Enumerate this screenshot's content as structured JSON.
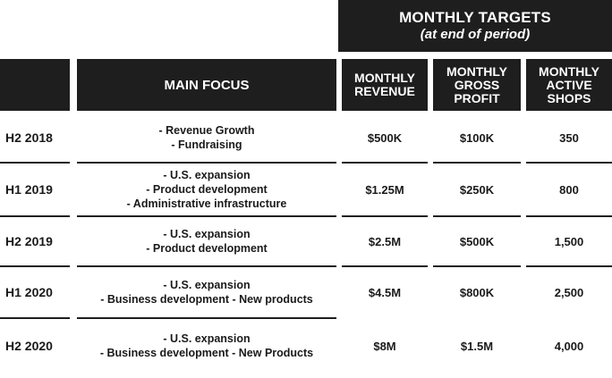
{
  "header": {
    "targets_title": "MONTHLY TARGETS",
    "targets_subtitle": "(at end of period)",
    "main_focus": "MAIN FOCUS",
    "revenue_line1": "MONTHLY",
    "revenue_line2": "REVENUE",
    "gross_line1": "MONTHLY",
    "gross_line2": "GROSS",
    "gross_line3": "PROFIT",
    "shops_line1": "MONTHLY",
    "shops_line2": "ACTIVE",
    "shops_line3": "SHOPS"
  },
  "rows": [
    {
      "period": "H2 2018",
      "focus": [
        "- Revenue Growth",
        "- Fundraising"
      ],
      "revenue": "$500K",
      "gross_profit": "$100K",
      "active_shops": "350"
    },
    {
      "period": "H1 2019",
      "focus": [
        "- U.S. expansion",
        "- Product development",
        "- Administrative infrastructure"
      ],
      "revenue": "$1.25M",
      "gross_profit": "$250K",
      "active_shops": "800"
    },
    {
      "period": "H2 2019",
      "focus": [
        "- U.S. expansion",
        "- Product development"
      ],
      "revenue": "$2.5M",
      "gross_profit": "$500K",
      "active_shops": "1,500"
    },
    {
      "period": "H1 2020",
      "focus": [
        "- U.S. expansion",
        "- Business development - New products"
      ],
      "revenue": "$4.5M",
      "gross_profit": "$800K",
      "active_shops": "2,500"
    },
    {
      "period": "H2 2020",
      "focus": [
        "- U.S. expansion",
        "- Business development - New Products"
      ],
      "revenue": "$8M",
      "gross_profit": "$1.5M",
      "active_shops": "4,000"
    }
  ]
}
